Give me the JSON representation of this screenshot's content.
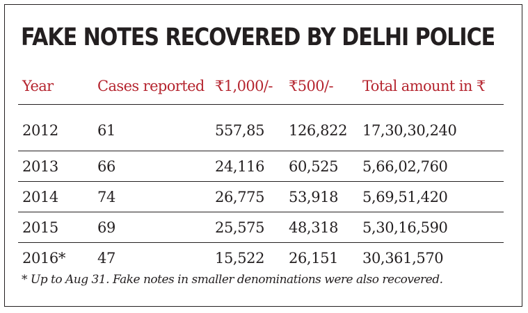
{
  "chart_data": {
    "type": "table",
    "title": "FAKE NOTES RECOVERED BY DELHI POLICE",
    "columns": [
      "Year",
      "Cases reported",
      "₹1,000/-",
      "₹500/-",
      "Total amount in ₹"
    ],
    "rows": [
      [
        "2012",
        "61",
        "557,85",
        "126,822",
        "17,30,30,240"
      ],
      [
        "2013",
        "66",
        "24,116",
        "60,525",
        "5,66,02,760"
      ],
      [
        "2014",
        "74",
        "26,775",
        "53,918",
        "5,69,51,420"
      ],
      [
        "2015",
        "69",
        "25,575",
        "48,318",
        "5,30,16,590"
      ],
      [
        "2016*",
        "47",
        "15,522",
        "26,151",
        "30,361,570"
      ]
    ],
    "footnote": "* Up to Aug 31. Fake notes in smaller denominations were also recovered.",
    "colors": {
      "header_text": "#b5252f",
      "body_text": "#231f20",
      "rule": "#231f20"
    }
  }
}
